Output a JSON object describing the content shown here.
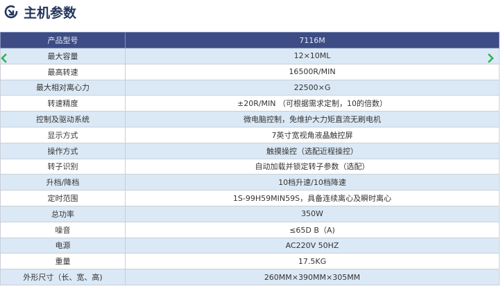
{
  "title": "主机参数",
  "colors": {
    "header_bg": "#3d4c85",
    "alt_row": "#dbe9f6",
    "nav_arrow": "#2bb24c",
    "title": "#24365f"
  },
  "table": {
    "header": {
      "key": "产品型号",
      "value": "7116M"
    },
    "rows": [
      {
        "key": "最大容量",
        "value": "12×10ML"
      },
      {
        "key": "最高转速",
        "value": "16500R/MIN"
      },
      {
        "key": "最大相对离心力",
        "value": "22500×G"
      },
      {
        "key": "转速精度",
        "value": "±20R/MIN （可根据需求定制，10的倍数）"
      },
      {
        "key": "控制及驱动系统",
        "value": "微电脑控制，免维护大力矩直流无刷电机"
      },
      {
        "key": "显示方式",
        "value": "7英寸宽视角液晶触控屏"
      },
      {
        "key": "操作方式",
        "value": "触摸操控（选配近程操控）"
      },
      {
        "key": "转子识别",
        "value": "自动加载并锁定转子参数（选配）"
      },
      {
        "key": "升档/降档",
        "value": "10档升速/10档降速"
      },
      {
        "key": "定时范围",
        "value": "1S-99H59MIN59S，具备连续离心及瞬时离心"
      },
      {
        "key": "总功率",
        "value": "350W"
      },
      {
        "key": "噪音",
        "value": "≤65D B（A)"
      },
      {
        "key": "电源",
        "value": "AC220V 50HZ"
      },
      {
        "key": "重量",
        "value": "17.5KG"
      },
      {
        "key": "外形尺寸（长、宽、高)",
        "value": "260MM×390MM×305MM"
      }
    ]
  }
}
